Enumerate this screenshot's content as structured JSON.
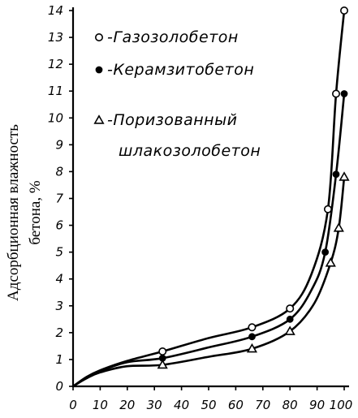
{
  "chart_data": {
    "type": "line",
    "title": "",
    "xlabel": "",
    "ylabel_line1": "Адсорбционная влажность",
    "ylabel_line2": "бетона, %",
    "xlim": [
      0,
      100
    ],
    "ylim": [
      0,
      14
    ],
    "xticks": [
      0,
      10,
      20,
      30,
      40,
      50,
      60,
      70,
      80,
      90,
      100
    ],
    "yticks": [
      0,
      1,
      2,
      3,
      4,
      5,
      6,
      7,
      8,
      9,
      10,
      11,
      12,
      13,
      14
    ],
    "grid": false,
    "legend_position": "top-left",
    "series": [
      {
        "name": "-Газозолобетон",
        "marker": "open-circle",
        "points": [
          [
            33,
            1.3
          ],
          [
            66,
            2.2
          ],
          [
            80,
            2.9
          ],
          [
            94,
            6.6
          ],
          [
            97,
            10.9
          ],
          [
            100,
            14.0
          ]
        ],
        "curve": [
          [
            0,
            0
          ],
          [
            5,
            0.35
          ],
          [
            10,
            0.6
          ],
          [
            20,
            0.95
          ],
          [
            33,
            1.3
          ],
          [
            50,
            1.8
          ],
          [
            66,
            2.2
          ],
          [
            80,
            2.9
          ],
          [
            88,
            4.2
          ],
          [
            94,
            6.6
          ],
          [
            97,
            10.9
          ],
          [
            100,
            14.0
          ]
        ]
      },
      {
        "name": "-Керамзитобетон",
        "marker": "filled-circle",
        "points": [
          [
            33,
            1.05
          ],
          [
            66,
            1.85
          ],
          [
            80,
            2.5
          ],
          [
            93,
            5.0
          ],
          [
            97,
            7.9
          ],
          [
            100,
            10.9
          ]
        ],
        "curve": [
          [
            0,
            0
          ],
          [
            5,
            0.33
          ],
          [
            10,
            0.57
          ],
          [
            20,
            0.9
          ],
          [
            33,
            1.05
          ],
          [
            50,
            1.45
          ],
          [
            66,
            1.85
          ],
          [
            80,
            2.5
          ],
          [
            88,
            3.6
          ],
          [
            93,
            5.0
          ],
          [
            97,
            7.9
          ],
          [
            100,
            10.9
          ]
        ]
      },
      {
        "name": "-Поризованный",
        "name_line2": "шлакозолобетон",
        "marker": "open-triangle",
        "points": [
          [
            33,
            0.8
          ],
          [
            66,
            1.4
          ],
          [
            80,
            2.05
          ],
          [
            95,
            4.6
          ],
          [
            98,
            5.9
          ],
          [
            100,
            7.8
          ]
        ],
        "curve": [
          [
            0,
            0
          ],
          [
            5,
            0.3
          ],
          [
            10,
            0.52
          ],
          [
            20,
            0.75
          ],
          [
            33,
            0.8
          ],
          [
            50,
            1.1
          ],
          [
            66,
            1.4
          ],
          [
            80,
            2.05
          ],
          [
            89,
            3.1
          ],
          [
            95,
            4.6
          ],
          [
            98,
            5.9
          ],
          [
            100,
            7.8
          ]
        ]
      }
    ]
  }
}
